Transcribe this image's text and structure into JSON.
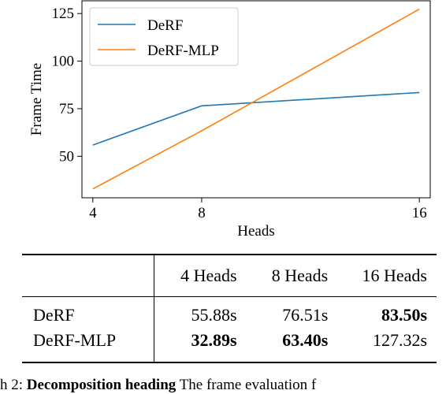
{
  "chart_data": {
    "type": "line",
    "x": [
      4,
      8,
      16
    ],
    "xticks": [
      "4",
      "8",
      "16"
    ],
    "yticks": [
      "50",
      "75",
      "100",
      "125"
    ],
    "xlim": [
      3.6,
      16.4
    ],
    "ylim": [
      28.2,
      131.7
    ],
    "xlabel": "Heads",
    "ylabel": "Frame Time",
    "legend_position": "top-left",
    "grid": false,
    "series": [
      {
        "name": "DeRF",
        "color": "#1f77b4",
        "values": [
          55.88,
          76.51,
          83.5
        ]
      },
      {
        "name": "DeRF-MLP",
        "color": "#ff7f0e",
        "values": [
          32.89,
          63.4,
          127.32
        ]
      }
    ]
  },
  "table": {
    "headers": [
      "",
      "4 Heads",
      "8 Heads",
      "16 Heads"
    ],
    "rows": [
      {
        "method": "DeRF",
        "cells": [
          "55.88s",
          "76.51s",
          "83.50s"
        ],
        "bold": [
          false,
          false,
          true
        ]
      },
      {
        "method": "DeRF-MLP",
        "cells": [
          "32.89s",
          "63.40s",
          "127.32s"
        ],
        "bold": [
          true,
          true,
          false
        ]
      }
    ]
  },
  "caption": {
    "prefix": "h 2: ",
    "bold_text": "Decomposition heading",
    "rest": "  The frame evaluation f"
  }
}
